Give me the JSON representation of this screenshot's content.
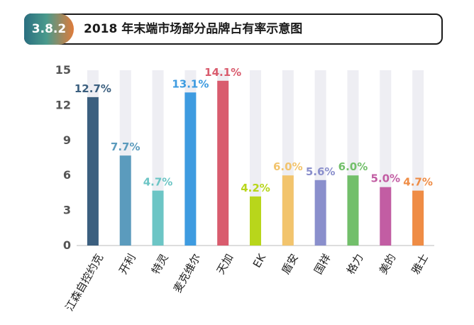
{
  "header": {
    "badge": "3.8.2",
    "title": "2018 年末端市场部分品牌占有率示意图"
  },
  "chart_data": {
    "type": "bar",
    "title": "2018 年末端市场部分品牌占有率示意图",
    "xlabel": "",
    "ylabel": "",
    "ylim": [
      0,
      15
    ],
    "yticks": [
      0,
      3,
      6,
      9,
      12,
      15
    ],
    "categories": [
      "江森自控约克",
      "开利",
      "特灵",
      "麦克维尔",
      "天加",
      "EK",
      "盾安",
      "国祥",
      "格力",
      "美的",
      "雅士"
    ],
    "values": [
      12.7,
      7.7,
      4.7,
      13.1,
      14.1,
      4.2,
      6.0,
      5.6,
      6.0,
      5.0,
      4.7
    ],
    "value_labels": [
      "12.7%",
      "7.7%",
      "4.7%",
      "13.1%",
      "14.1%",
      "4.2%",
      "6.0%",
      "5.6%",
      "6.0%",
      "5.0%",
      "4.7%"
    ],
    "bar_colors": [
      "#3b5f7f",
      "#5b9bbd",
      "#6cc5c5",
      "#3e9be0",
      "#d95c6e",
      "#b8d61b",
      "#f2c46d",
      "#8a8fcc",
      "#72bf6a",
      "#c25da3",
      "#ef8c45"
    ],
    "label_colors": [
      "#3b5f7f",
      "#5b9bbd",
      "#6cc5c5",
      "#3e9be0",
      "#d95c6e",
      "#b8d61b",
      "#f2c46d",
      "#8a8fcc",
      "#72bf6a",
      "#c25da3",
      "#ef8c45"
    ],
    "background_bar_color": "#eeeef3",
    "grid": false
  }
}
